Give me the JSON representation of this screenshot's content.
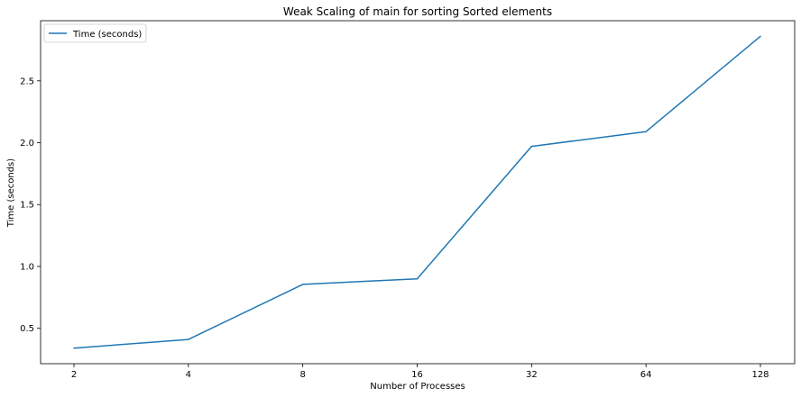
{
  "chart_data": {
    "type": "line",
    "title": "Weak Scaling of main for sorting Sorted elements",
    "xlabel": "Number of Processes",
    "ylabel": "Time (seconds)",
    "categories": [
      "2",
      "4",
      "8",
      "16",
      "32",
      "64",
      "128"
    ],
    "series": [
      {
        "name": "Time (seconds)",
        "color": "#1f77b4",
        "values": [
          0.34,
          0.41,
          0.855,
          0.9,
          1.97,
          2.09,
          2.86
        ]
      }
    ],
    "yticks": [
      0.5,
      1.0,
      1.5,
      2.0,
      2.5
    ],
    "ytick_labels": [
      "0.5",
      "1.0",
      "1.5",
      "2.0",
      "2.5"
    ],
    "ylim": [
      0.214,
      2.986
    ],
    "grid": false,
    "legend_position": "top-left"
  }
}
